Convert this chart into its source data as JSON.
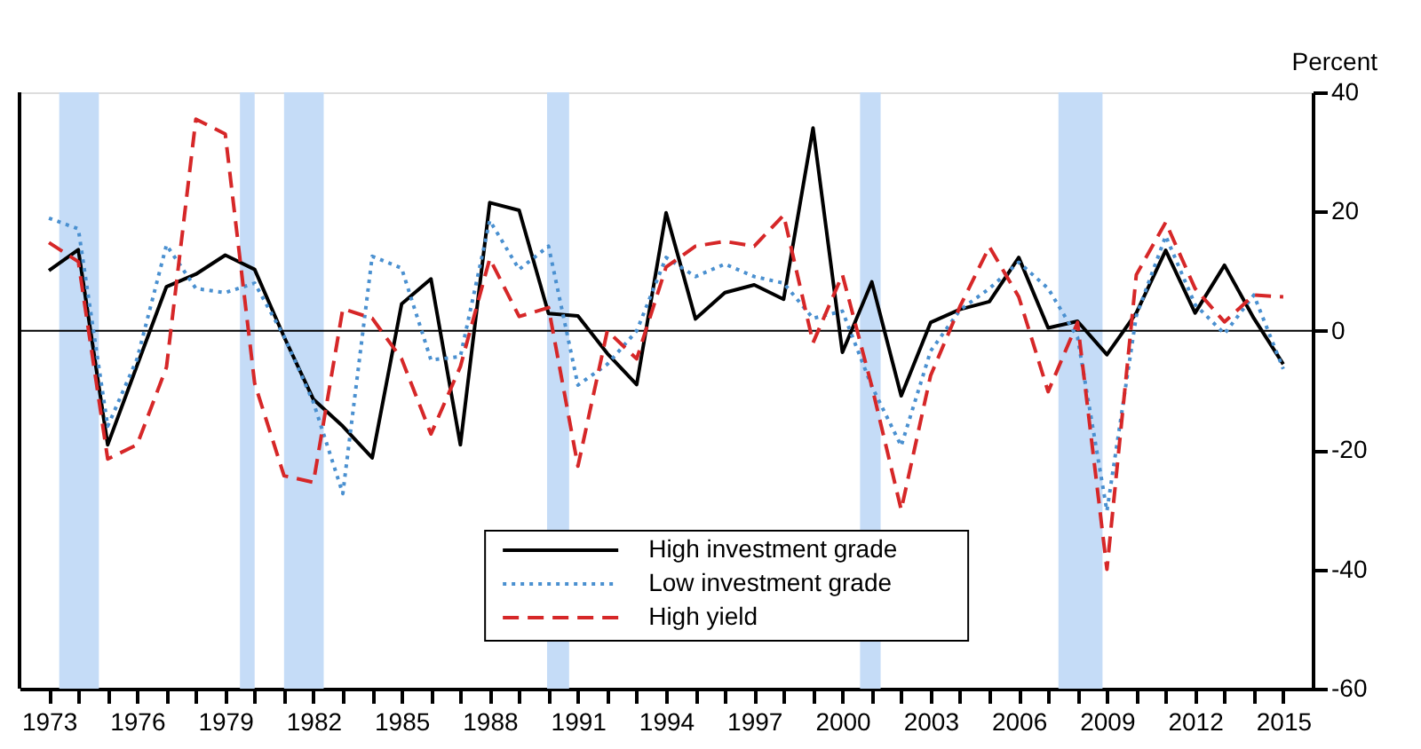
{
  "chart_data": {
    "type": "line",
    "ylabel": "Percent",
    "x": [
      1973,
      1974,
      1975,
      1976,
      1977,
      1978,
      1979,
      1980,
      1981,
      1982,
      1983,
      1984,
      1985,
      1986,
      1987,
      1988,
      1989,
      1990,
      1991,
      1992,
      1993,
      1994,
      1995,
      1996,
      1997,
      1998,
      1999,
      2000,
      2001,
      2002,
      2003,
      2004,
      2005,
      2006,
      2007,
      2008,
      2009,
      2010,
      2011,
      2012,
      2013,
      2014,
      2015
    ],
    "series": [
      {
        "name": "High investment grade",
        "color": "#000000",
        "line_style": "solid",
        "values": [
          10.1,
          13.6,
          -19.1,
          -5.8,
          7.4,
          9.5,
          12.7,
          10.3,
          -1,
          -11.5,
          -16,
          -21.3,
          4.5,
          8.7,
          -19.1,
          21.5,
          20.2,
          2.9,
          2.5,
          -3.8,
          -9,
          19.8,
          2,
          6.4,
          7.7,
          5.3,
          34,
          -3.6,
          8.2,
          -10.9,
          1.4,
          3.6,
          4.9,
          12.3,
          0.5,
          1.6,
          -4,
          3,
          13.5,
          3,
          11,
          2.1,
          -5.6
        ]
      },
      {
        "name": "Low investment grade",
        "color": "#4a90d0",
        "line_style": "dotted",
        "values": [
          18.9,
          17.1,
          -16,
          -4.7,
          14.4,
          7.1,
          6.4,
          8,
          -0.9,
          -12,
          -27.3,
          12.5,
          10.5,
          -4.9,
          -4.3,
          18.5,
          10.3,
          14.2,
          -9.1,
          -5.6,
          0,
          12.3,
          9.1,
          11.2,
          9.1,
          8,
          2.1,
          3.3,
          -9.3,
          -19.3,
          -3.4,
          3.5,
          7.1,
          11.5,
          7.1,
          -1.1,
          -30.2,
          2.5,
          15.9,
          4.4,
          -0.5,
          6,
          -6.4
        ]
      },
      {
        "name": "High yield",
        "color": "#d62728",
        "line_style": "dashed",
        "values": [
          14.8,
          11.6,
          -21.5,
          -19.1,
          -6.1,
          35.5,
          33,
          -8.8,
          -24.3,
          -25.4,
          3.7,
          2.1,
          -4.7,
          -17.3,
          -6,
          12.1,
          2.4,
          3.9,
          -22.7,
          0,
          -4.7,
          10.7,
          14.2,
          15,
          14.2,
          19.4,
          -2,
          9.4,
          -9.3,
          -30,
          -7.5,
          4.1,
          14.1,
          5.7,
          -10.2,
          1.4,
          -40,
          9.4,
          18.2,
          7.1,
          1.5,
          6,
          5.7
        ]
      }
    ],
    "xlim": [
      1972,
      2016
    ],
    "xticks": [
      1973,
      {
        "value": 1974,
        "label": null
      },
      {
        "value": 1975,
        "label": null
      },
      1976,
      {
        "value": 1977,
        "label": null
      },
      {
        "value": 1978,
        "label": null
      },
      1979,
      {
        "value": 1980,
        "label": null
      },
      {
        "value": 1981,
        "label": null
      },
      1982,
      {
        "value": 1983,
        "label": null
      },
      {
        "value": 1984,
        "label": null
      },
      1985,
      {
        "value": 1986,
        "label": null
      },
      {
        "value": 1987,
        "label": null
      },
      1988,
      {
        "value": 1989,
        "label": null
      },
      {
        "value": 1990,
        "label": null
      },
      1991,
      {
        "value": 1992,
        "label": null
      },
      {
        "value": 1993,
        "label": null
      },
      1994,
      {
        "value": 1995,
        "label": null
      },
      {
        "value": 1996,
        "label": null
      },
      1997,
      {
        "value": 1998,
        "label": null
      },
      {
        "value": 1999,
        "label": null
      },
      2000,
      {
        "value": 2001,
        "label": null
      },
      {
        "value": 2002,
        "label": null
      },
      2003,
      {
        "value": 2004,
        "label": null
      },
      {
        "value": 2005,
        "label": null
      },
      2006,
      {
        "value": 2007,
        "label": null
      },
      {
        "value": 2008,
        "label": null
      },
      2009,
      {
        "value": 2010,
        "label": null
      },
      {
        "value": 2011,
        "label": null
      },
      2012,
      {
        "value": 2013,
        "label": null
      },
      {
        "value": 2014,
        "label": null
      },
      2015
    ],
    "ylim": [
      -60,
      40
    ],
    "yticks": [
      -60,
      -40,
      -20,
      0,
      20,
      40
    ],
    "ref_lines": [
      {
        "axis": "y",
        "value": 0,
        "color": "#000000"
      }
    ],
    "bands": [
      {
        "axis": "x",
        "from": 1973.35,
        "to": 1974.7,
        "color": "#c5dcf7"
      },
      {
        "axis": "x",
        "from": 1979.5,
        "to": 1980.0,
        "color": "#c5dcf7"
      },
      {
        "axis": "x",
        "from": 1981.0,
        "to": 1982.35,
        "color": "#c5dcf7"
      },
      {
        "axis": "x",
        "from": 1989.95,
        "to": 1990.7,
        "color": "#c5dcf7"
      },
      {
        "axis": "x",
        "from": 2000.6,
        "to": 2001.3,
        "color": "#c5dcf7"
      },
      {
        "axis": "x",
        "from": 2007.35,
        "to": 2008.85,
        "color": "#c5dcf7"
      }
    ],
    "grid": false,
    "legend": "bottom",
    "marker": "none"
  }
}
